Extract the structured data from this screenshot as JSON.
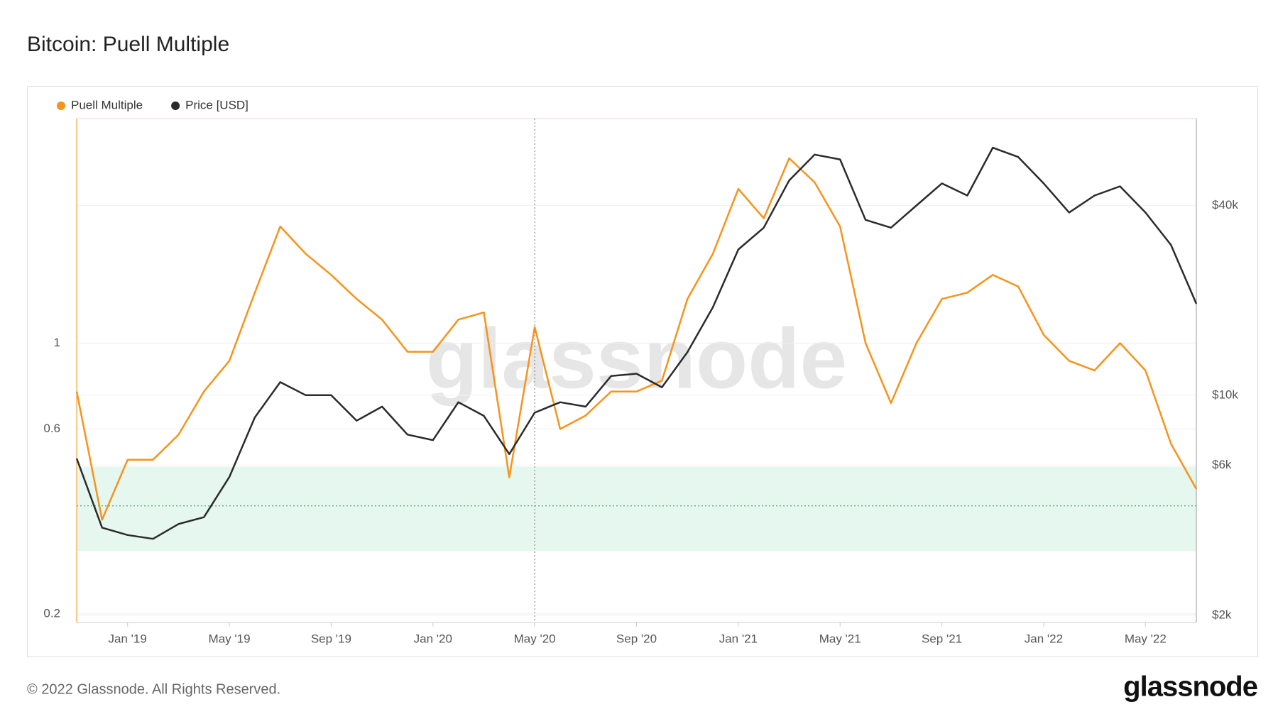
{
  "chart_data": {
    "type": "line",
    "title": "Bitcoin: Puell Multiple",
    "footer": "© 2022 Glassnode. All Rights Reserved.",
    "logo": "glassnode",
    "watermark": "glassnode",
    "x": [
      "2018-11",
      "2018-12",
      "2019-01",
      "2019-02",
      "2019-03",
      "2019-04",
      "2019-05",
      "2019-06",
      "2019-07",
      "2019-08",
      "2019-09",
      "2019-10",
      "2019-11",
      "2019-12",
      "2020-01",
      "2020-02",
      "2020-03",
      "2020-04",
      "2020-05",
      "2020-06",
      "2020-07",
      "2020-08",
      "2020-09",
      "2020-10",
      "2020-11",
      "2020-12",
      "2021-01",
      "2021-02",
      "2021-03",
      "2021-04",
      "2021-05",
      "2021-06",
      "2021-07",
      "2021-08",
      "2021-09",
      "2021-10",
      "2021-11",
      "2021-12",
      "2022-01",
      "2022-02",
      "2022-03",
      "2022-04",
      "2022-05",
      "2022-06",
      "2022-07"
    ],
    "series": [
      {
        "name": "Puell Multiple",
        "color": "#f7931a",
        "axis": "y",
        "values": [
          0.75,
          0.35,
          0.5,
          0.5,
          0.58,
          0.75,
          0.9,
          1.35,
          2.0,
          1.7,
          1.5,
          1.3,
          1.15,
          0.95,
          0.95,
          1.15,
          1.2,
          0.45,
          1.1,
          0.6,
          0.65,
          0.75,
          0.75,
          0.8,
          1.3,
          1.7,
          2.5,
          2.1,
          3.0,
          2.6,
          2.0,
          1.0,
          0.7,
          1.0,
          1.3,
          1.35,
          1.5,
          1.4,
          1.05,
          0.9,
          0.85,
          1.0,
          0.85,
          0.55,
          0.42
        ]
      },
      {
        "name": "Price [USD]",
        "color": "#2b2b2b",
        "axis": "y2",
        "values": [
          6300,
          3800,
          3600,
          3500,
          3900,
          4100,
          5500,
          8500,
          11000,
          10000,
          10000,
          8300,
          9200,
          7500,
          7200,
          9500,
          8600,
          6500,
          8800,
          9500,
          9200,
          11500,
          11700,
          10600,
          13700,
          19000,
          29000,
          34000,
          48000,
          58000,
          56000,
          36000,
          34000,
          40000,
          47000,
          43000,
          61000,
          57000,
          47000,
          38000,
          43000,
          46000,
          38000,
          30000,
          19500
        ]
      }
    ],
    "xlim": [
      "2018-11",
      "2022-07"
    ],
    "xticks": [
      {
        "value": "2019-01",
        "label": "Jan '19"
      },
      {
        "value": "2019-05",
        "label": "May '19"
      },
      {
        "value": "2019-09",
        "label": "Sep '19"
      },
      {
        "value": "2020-01",
        "label": "Jan '20"
      },
      {
        "value": "2020-05",
        "label": "May '20"
      },
      {
        "value": "2020-09",
        "label": "Sep '20"
      },
      {
        "value": "2021-01",
        "label": "Jan '21"
      },
      {
        "value": "2021-05",
        "label": "May '21"
      },
      {
        "value": "2021-09",
        "label": "Sep '21"
      },
      {
        "value": "2022-01",
        "label": "Jan '22"
      },
      {
        "value": "2022-05",
        "label": "May '22"
      }
    ],
    "ylim": [
      0.19,
      3.8
    ],
    "yticks": [
      0.2,
      0.6,
      1
    ],
    "y2lim": [
      1900,
      75500
    ],
    "y2ticks": [
      {
        "value": 2000,
        "label": "$2k"
      },
      {
        "value": 6000,
        "label": "$6k"
      },
      {
        "value": 10000,
        "label": "$10k"
      },
      {
        "value": 40000,
        "label": "$40k"
      }
    ],
    "log_scale": true,
    "grid": true,
    "band": [
      0.29,
      0.48
    ],
    "reference_line": 0.38,
    "vline": "2020-05",
    "legend": "top-left"
  }
}
